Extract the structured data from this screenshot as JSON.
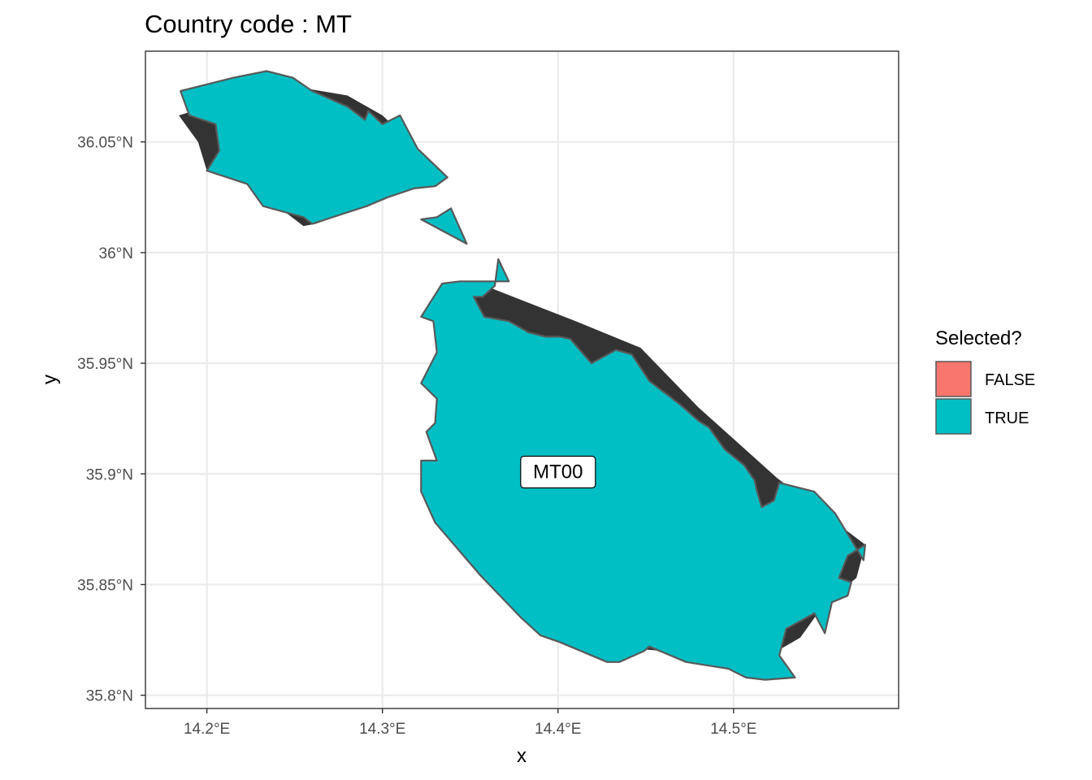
{
  "title": "Country code : MT",
  "x_axis": {
    "title": "x",
    "ticks": [
      "14.2°E",
      "14.3°E",
      "14.4°E",
      "14.5°E"
    ],
    "tick_values": [
      14.2,
      14.3,
      14.4,
      14.5
    ],
    "range": [
      14.165,
      14.594
    ]
  },
  "y_axis": {
    "title": "y",
    "ticks": [
      "35.8°N",
      "35.85°N",
      "35.9°N",
      "35.95°N",
      "36°N",
      "36.05°N"
    ],
    "tick_values": [
      35.8,
      35.85,
      35.9,
      35.95,
      36.0,
      36.05
    ],
    "range": [
      35.794,
      36.091
    ]
  },
  "legend": {
    "title": "Selected?",
    "position": "right",
    "items": [
      {
        "label": "FALSE",
        "color": "#F8766D"
      },
      {
        "label": "TRUE",
        "color": "#00BFC4"
      }
    ]
  },
  "colors": {
    "selected_fill": "#00BFC4",
    "outline": "#595959",
    "underlying_land": "#333333",
    "grid": "#ebebeb",
    "panel_border": "#333333"
  },
  "region_label": {
    "text": "MT00",
    "lon": 14.4,
    "lat": 35.901
  },
  "map_data": {
    "type": "choropleth",
    "regions": [
      {
        "id": "MT00",
        "selected": "TRUE"
      }
    ],
    "gozo_polygon": [
      [
        14.185,
        36.073
      ],
      [
        14.215,
        36.079
      ],
      [
        14.234,
        36.082
      ],
      [
        14.249,
        36.079
      ],
      [
        14.26,
        36.073
      ],
      [
        14.28,
        36.066
      ],
      [
        14.29,
        36.06
      ],
      [
        14.292,
        36.064
      ],
      [
        14.3,
        36.058
      ],
      [
        14.31,
        36.062
      ],
      [
        14.32,
        36.047
      ],
      [
        14.337,
        36.034
      ],
      [
        14.33,
        36.03
      ],
      [
        14.318,
        36.029
      ],
      [
        14.303,
        36.025
      ],
      [
        14.291,
        36.021
      ],
      [
        14.26,
        36.013
      ],
      [
        14.255,
        36.016
      ],
      [
        14.232,
        36.021
      ],
      [
        14.223,
        36.031
      ],
      [
        14.2,
        36.037
      ],
      [
        14.207,
        36.046
      ],
      [
        14.205,
        36.058
      ],
      [
        14.19,
        36.062
      ]
    ],
    "gozo_land_polygon": [
      [
        14.184,
        36.062
      ],
      [
        14.205,
        36.067
      ],
      [
        14.23,
        36.08
      ],
      [
        14.25,
        36.075
      ],
      [
        14.28,
        36.071
      ],
      [
        14.3,
        36.062
      ],
      [
        14.32,
        36.047
      ],
      [
        14.337,
        36.034
      ],
      [
        14.318,
        36.029
      ],
      [
        14.303,
        36.025
      ],
      [
        14.29,
        36.021
      ],
      [
        14.262,
        36.013
      ],
      [
        14.255,
        36.012
      ],
      [
        14.245,
        36.018
      ],
      [
        14.232,
        36.021
      ],
      [
        14.223,
        36.031
      ],
      [
        14.2,
        36.037
      ],
      [
        14.195,
        36.05
      ]
    ],
    "comino_polygon": [
      [
        14.322,
        36.015
      ],
      [
        14.348,
        36.004
      ],
      [
        14.339,
        36.02
      ],
      [
        14.331,
        36.016
      ]
    ],
    "malta_polygon": [
      [
        14.366,
        35.997
      ],
      [
        14.372,
        35.987
      ],
      [
        14.344,
        35.987
      ],
      [
        14.334,
        35.986
      ],
      [
        14.322,
        35.971
      ],
      [
        14.329,
        35.969
      ],
      [
        14.331,
        35.955
      ],
      [
        14.322,
        35.941
      ],
      [
        14.331,
        35.934
      ],
      [
        14.33,
        35.923
      ],
      [
        14.325,
        35.919
      ],
      [
        14.331,
        35.906
      ],
      [
        14.322,
        35.906
      ],
      [
        14.322,
        35.892
      ],
      [
        14.33,
        35.878
      ],
      [
        14.356,
        35.854
      ],
      [
        14.379,
        35.835
      ],
      [
        14.39,
        35.827
      ],
      [
        14.401,
        35.824
      ],
      [
        14.428,
        35.815
      ],
      [
        14.435,
        35.815
      ],
      [
        14.449,
        35.82
      ],
      [
        14.452,
        35.822
      ],
      [
        14.473,
        35.815
      ],
      [
        14.497,
        35.812
      ],
      [
        14.507,
        35.808
      ],
      [
        14.518,
        35.807
      ],
      [
        14.535,
        35.808
      ],
      [
        14.526,
        35.818
      ],
      [
        14.53,
        35.83
      ],
      [
        14.546,
        35.837
      ],
      [
        14.552,
        35.828
      ],
      [
        14.556,
        35.842
      ],
      [
        14.565,
        35.845
      ],
      [
        14.567,
        35.851
      ],
      [
        14.56,
        35.853
      ],
      [
        14.565,
        35.863
      ],
      [
        14.575,
        35.868
      ],
      [
        14.574,
        35.861
      ],
      [
        14.558,
        35.882
      ],
      [
        14.546,
        35.892
      ],
      [
        14.526,
        35.896
      ],
      [
        14.523,
        35.888
      ],
      [
        14.516,
        35.885
      ],
      [
        14.513,
        35.893
      ],
      [
        14.512,
        35.897
      ],
      [
        14.506,
        35.904
      ],
      [
        14.495,
        35.911
      ],
      [
        14.486,
        35.921
      ],
      [
        14.48,
        35.924
      ],
      [
        14.47,
        35.931
      ],
      [
        14.452,
        35.942
      ],
      [
        14.442,
        35.954
      ],
      [
        14.433,
        35.956
      ],
      [
        14.419,
        35.95
      ],
      [
        14.407,
        35.961
      ],
      [
        14.401,
        35.962
      ],
      [
        14.393,
        35.962
      ],
      [
        14.383,
        35.964
      ],
      [
        14.372,
        35.969
      ],
      [
        14.358,
        35.971
      ],
      [
        14.352,
        35.98
      ],
      [
        14.357,
        35.98
      ],
      [
        14.364,
        35.985
      ]
    ],
    "malta_land_polygon": [
      [
        14.352,
        35.987
      ],
      [
        14.41,
        35.969
      ],
      [
        14.447,
        35.957
      ],
      [
        14.48,
        35.93
      ],
      [
        14.525,
        35.898
      ],
      [
        14.53,
        35.895
      ],
      [
        14.575,
        35.868
      ],
      [
        14.57,
        35.853
      ],
      [
        14.553,
        35.842
      ],
      [
        14.547,
        35.836
      ],
      [
        14.538,
        35.826
      ],
      [
        14.527,
        35.821
      ],
      [
        14.52,
        35.819
      ],
      [
        14.513,
        35.819
      ],
      [
        14.46,
        35.82
      ],
      [
        14.428,
        35.822
      ],
      [
        14.42,
        35.83
      ],
      [
        14.4,
        35.84
      ],
      [
        14.37,
        35.86
      ],
      [
        14.34,
        35.88
      ],
      [
        14.33,
        35.9
      ],
      [
        14.331,
        35.94
      ],
      [
        14.338,
        35.972
      ]
    ]
  }
}
